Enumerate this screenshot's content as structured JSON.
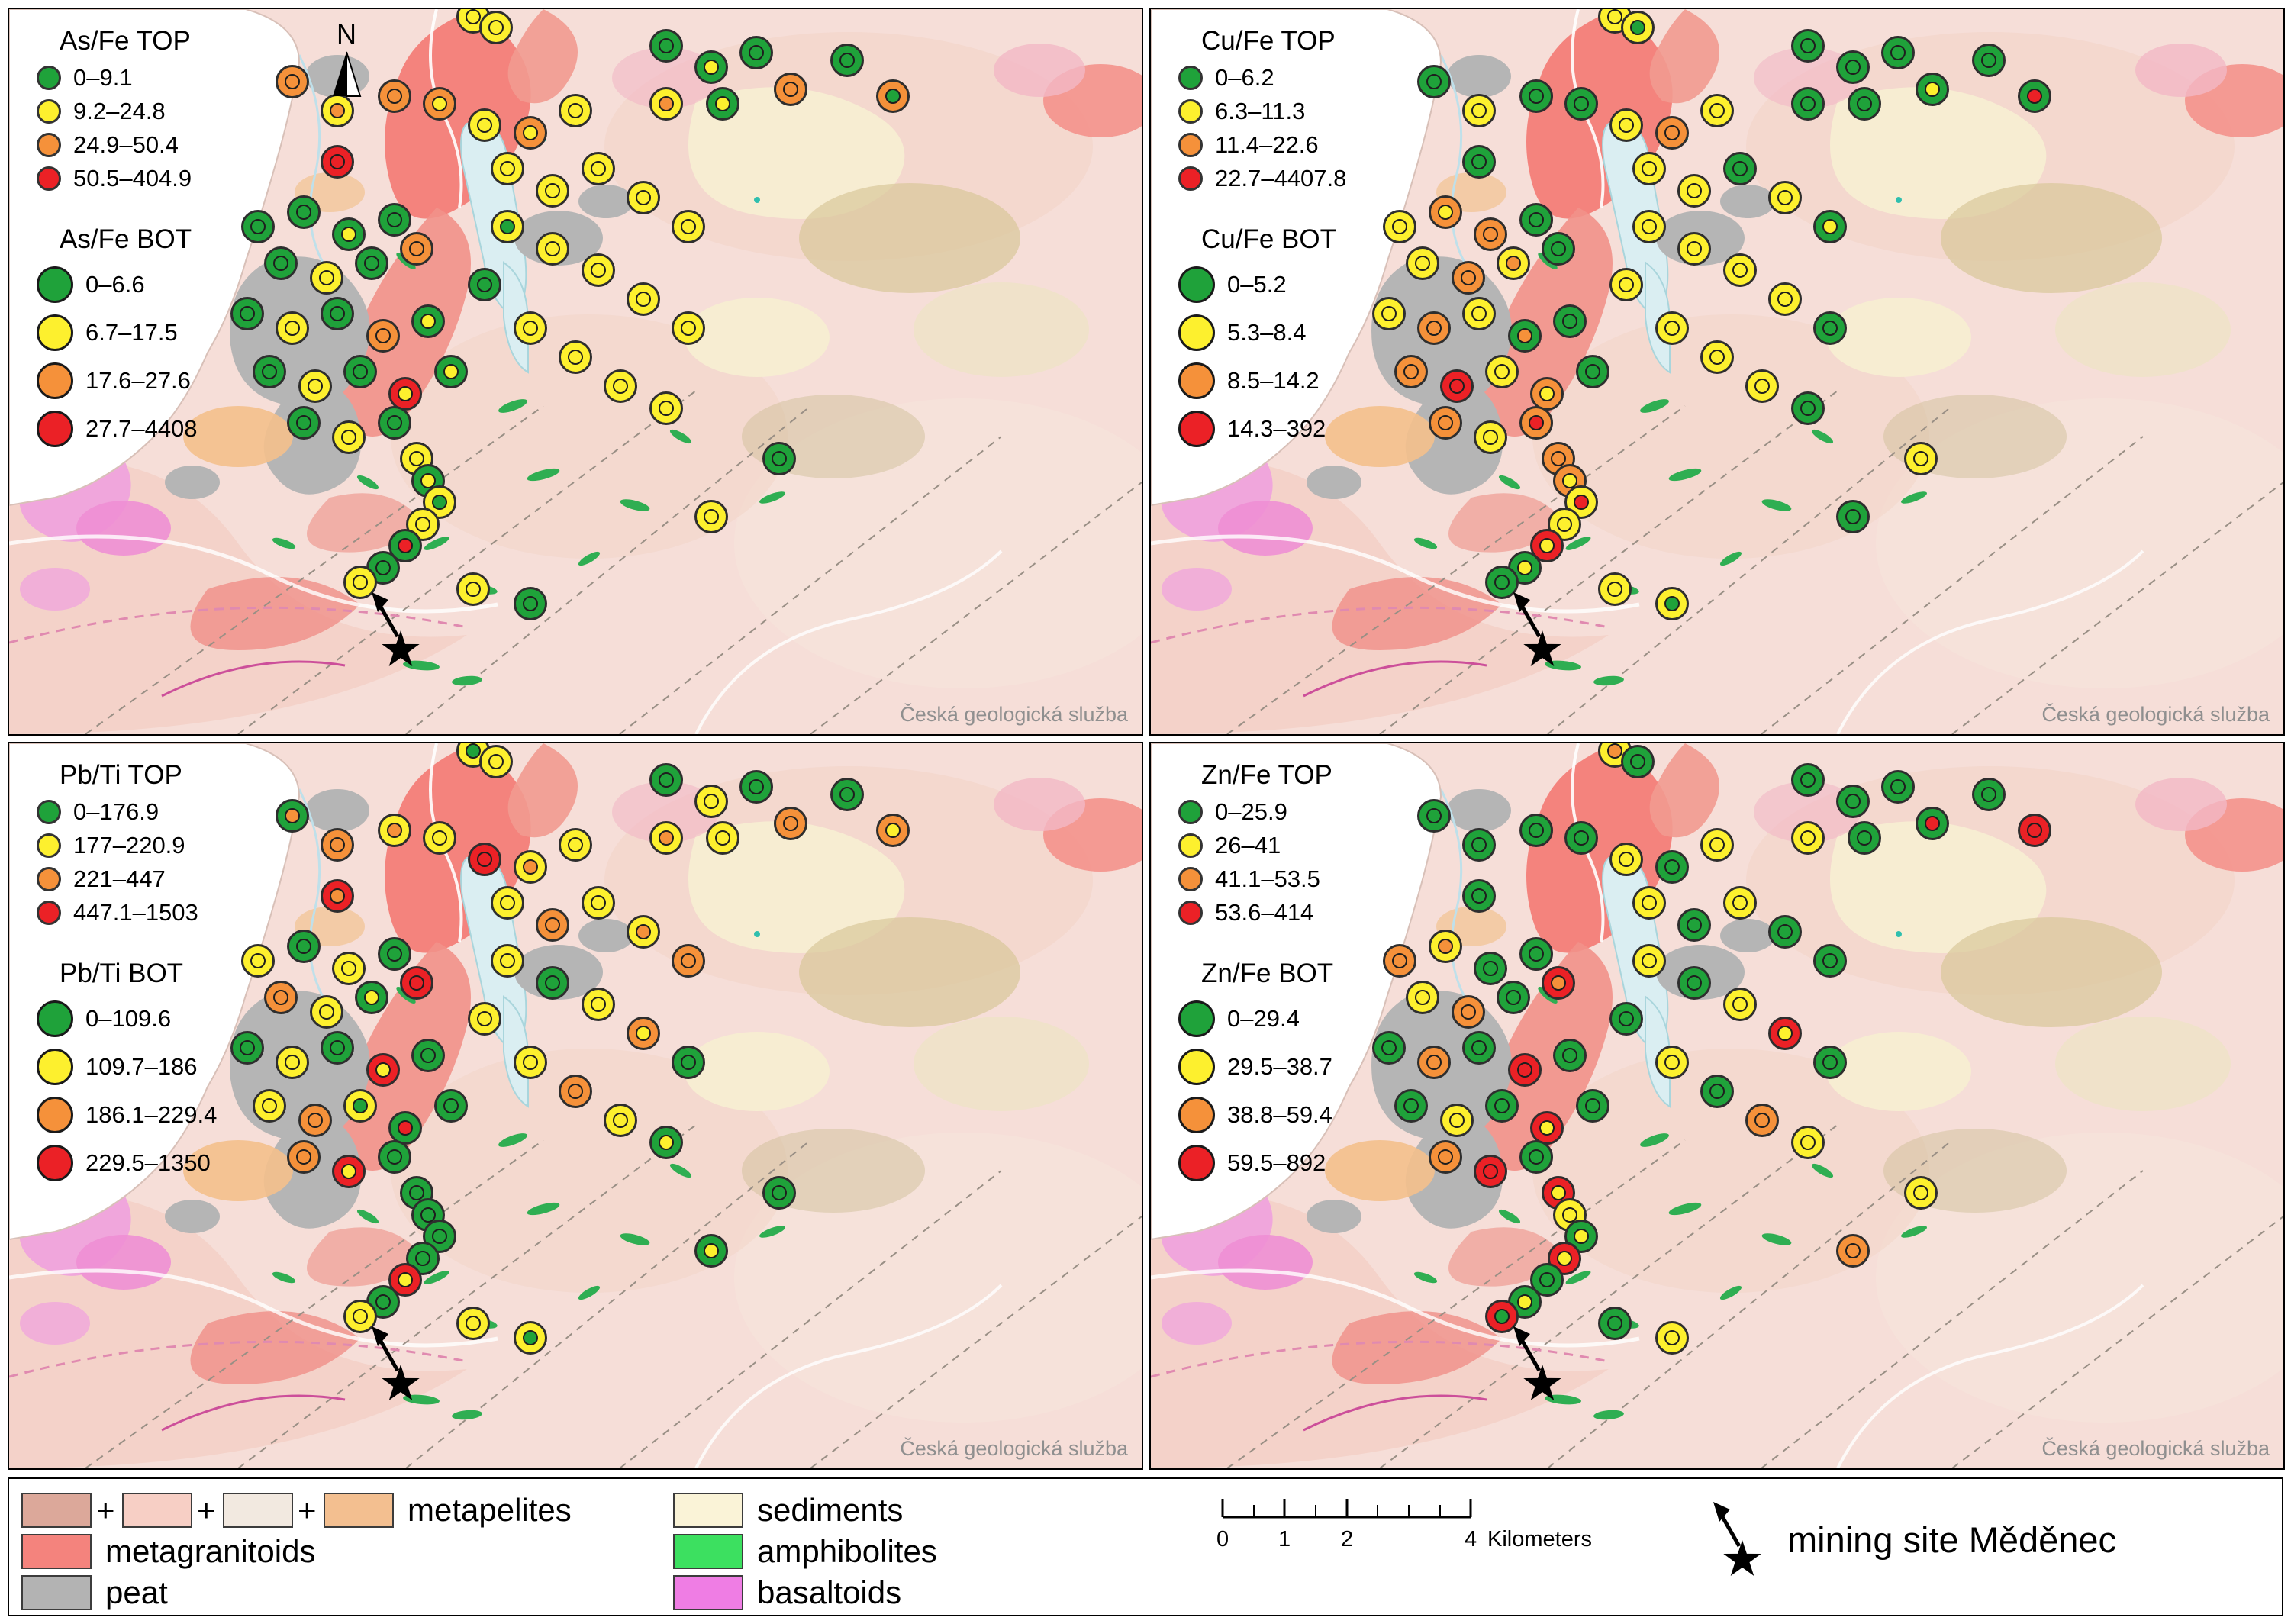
{
  "north_label": "N",
  "watermark": "Česká geologická služba",
  "plus_sign": "+",
  "marker_palette": {
    "g": "#1fa23a",
    "y": "#fdf02e",
    "o": "#f5913a",
    "r": "#eb2126"
  },
  "sites": [
    "41,1",
    "43,2.5",
    "58,5",
    "62,8",
    "66,6",
    "69,11",
    "63,13",
    "58,13",
    "74,7",
    "78,12",
    "25,10",
    "29,14",
    "34,12",
    "38,13",
    "42,16",
    "46,17",
    "50,14",
    "29,21",
    "22,30",
    "26,28",
    "30,31",
    "34,29",
    "24,35",
    "28,37",
    "32,35",
    "36,33",
    "21,42",
    "25,44",
    "29,42",
    "33,45",
    "37,43",
    "23,50",
    "27,52",
    "31,50",
    "35,53",
    "39,50",
    "26,57",
    "30,59",
    "34,57",
    "44,22",
    "48,25",
    "52,22",
    "56,26",
    "60,30",
    "44,30",
    "48,33",
    "52,36",
    "56,40",
    "60,44",
    "46,44",
    "50,48",
    "54,52",
    "58,55",
    "42,38",
    "36,62",
    "37,65",
    "38,68",
    "36.5,71",
    "35,74",
    "33,77",
    "31,79",
    "46,82",
    "41,80",
    "62,70",
    "68,62"
  ],
  "panels": [
    {
      "top": {
        "title": "As/Fe TOP",
        "classes": [
          {
            "c": "g",
            "label": "0–9.1"
          },
          {
            "c": "y",
            "label": "9.2–24.8"
          },
          {
            "c": "o",
            "label": "24.9–50.4"
          },
          {
            "c": "r",
            "label": "50.5–404.9"
          }
        ]
      },
      "bot": {
        "title": "As/Fe BOT",
        "classes": [
          {
            "c": "g",
            "label": "0–6.6"
          },
          {
            "c": "y",
            "label": "6.7–17.5"
          },
          {
            "c": "o",
            "label": "17.6–27.6"
          },
          {
            "c": "r",
            "label": "27.7–4408"
          }
        ]
      },
      "marker_colors": [
        "yy",
        "yy",
        "gg",
        "gy",
        "gg",
        "oo",
        "gy",
        "yo",
        "gg",
        "og",
        "oo",
        "yo",
        "oo",
        "oy",
        "yy",
        "oy",
        "yy",
        "rr",
        "gg",
        "gg",
        "gy",
        "gg",
        "gg",
        "yy",
        "gg",
        "oo",
        "gg",
        "yy",
        "gg",
        "oo",
        "gy",
        "gg",
        "yy",
        "gg",
        "ry",
        "gy",
        "gg",
        "yy",
        "gg",
        "yy",
        "yy",
        "yy",
        "yy",
        "yy",
        "yg",
        "yy",
        "yy",
        "yy",
        "yy",
        "yy",
        "yy",
        "yy",
        "yy",
        "gg",
        "yy",
        "gy",
        "yg",
        "yy",
        "gr",
        "gg",
        "yy",
        "gg",
        "yy",
        "yy",
        "gg"
      ]
    },
    {
      "top": {
        "title": "Cu/Fe TOP",
        "classes": [
          {
            "c": "g",
            "label": "0–6.2"
          },
          {
            "c": "y",
            "label": "6.3–11.3"
          },
          {
            "c": "o",
            "label": "11.4–22.6"
          },
          {
            "c": "r",
            "label": "22.7–4407.8"
          }
        ]
      },
      "bot": {
        "title": "Cu/Fe BOT",
        "classes": [
          {
            "c": "g",
            "label": "0–5.2"
          },
          {
            "c": "y",
            "label": "5.3–8.4"
          },
          {
            "c": "o",
            "label": "8.5–14.2"
          },
          {
            "c": "r",
            "label": "14.3–392"
          }
        ]
      },
      "marker_colors": [
        "yy",
        "yg",
        "gg",
        "gg",
        "gg",
        "gy",
        "gg",
        "gg",
        "gg",
        "gr",
        "gg",
        "yy",
        "gg",
        "gg",
        "yy",
        "oo",
        "yy",
        "gg",
        "yy",
        "oy",
        "oo",
        "gg",
        "yy",
        "oo",
        "yo",
        "gg",
        "yy",
        "oo",
        "yy",
        "go",
        "gg",
        "oo",
        "rr",
        "yy",
        "oy",
        "gg",
        "oo",
        "yy",
        "or",
        "yy",
        "yy",
        "gg",
        "yy",
        "gy",
        "yy",
        "yy",
        "yy",
        "yy",
        "gg",
        "yy",
        "yy",
        "yy",
        "gg",
        "yy",
        "oo",
        "oy",
        "yr",
        "yy",
        "ry",
        "gy",
        "gg",
        "yg",
        "yy",
        "gg",
        "yy"
      ]
    },
    {
      "top": {
        "title": "Pb/Ti TOP",
        "classes": [
          {
            "c": "g",
            "label": "0–176.9"
          },
          {
            "c": "y",
            "label": "177–220.9"
          },
          {
            "c": "o",
            "label": "221–447"
          },
          {
            "c": "r",
            "label": "447.1–1503"
          }
        ]
      },
      "bot": {
        "title": "Pb/Ti BOT",
        "classes": [
          {
            "c": "g",
            "label": "0–109.6"
          },
          {
            "c": "y",
            "label": "109.7–186"
          },
          {
            "c": "o",
            "label": "186.1–229.4"
          },
          {
            "c": "r",
            "label": "229.5–1350"
          }
        ]
      },
      "marker_colors": [
        "yg",
        "yy",
        "gg",
        "yy",
        "gg",
        "oo",
        "yy",
        "yo",
        "gg",
        "oy",
        "go",
        "oo",
        "yo",
        "yy",
        "rr",
        "yo",
        "yy",
        "ro",
        "yy",
        "gg",
        "yy",
        "gg",
        "oo",
        "yy",
        "gy",
        "rr",
        "gg",
        "yy",
        "gg",
        "ry",
        "gg",
        "yy",
        "oo",
        "yg",
        "gr",
        "gg",
        "oo",
        "ry",
        "gg",
        "yy",
        "oo",
        "yy",
        "yo",
        "oo",
        "yy",
        "gg",
        "yy",
        "oy",
        "gg",
        "yy",
        "oo",
        "yy",
        "gy",
        "yy",
        "gg",
        "gg",
        "gg",
        "gg",
        "ry",
        "gg",
        "yy",
        "yg",
        "yy",
        "gy",
        "gg"
      ]
    },
    {
      "top": {
        "title": "Zn/Fe TOP",
        "classes": [
          {
            "c": "g",
            "label": "0–25.9"
          },
          {
            "c": "y",
            "label": "26–41"
          },
          {
            "c": "o",
            "label": "41.1–53.5"
          },
          {
            "c": "r",
            "label": "53.6–414"
          }
        ]
      },
      "bot": {
        "title": "Zn/Fe BOT",
        "classes": [
          {
            "c": "g",
            "label": "0–29.4"
          },
          {
            "c": "y",
            "label": "29.5–38.7"
          },
          {
            "c": "o",
            "label": "38.8–59.4"
          },
          {
            "c": "r",
            "label": "59.5–892"
          }
        ]
      },
      "marker_colors": [
        "yo",
        "gg",
        "gg",
        "gg",
        "gg",
        "gr",
        "gg",
        "yy",
        "gg",
        "rr",
        "gg",
        "gg",
        "gg",
        "gg",
        "yy",
        "gg",
        "yy",
        "gg",
        "oo",
        "yo",
        "gg",
        "gg",
        "yy",
        "oo",
        "gg",
        "ro",
        "gg",
        "oo",
        "gg",
        "rr",
        "gg",
        "gg",
        "yy",
        "gg",
        "ry",
        "gg",
        "oo",
        "rr",
        "gg",
        "yy",
        "gg",
        "yy",
        "gg",
        "gg",
        "yy",
        "gg",
        "yy",
        "ry",
        "gg",
        "yy",
        "gg",
        "oo",
        "yy",
        "gg",
        "ry",
        "yy",
        "gy",
        "ry",
        "gg",
        "gy",
        "rg",
        "yy",
        "gg",
        "oo",
        "yy"
      ]
    }
  ],
  "geology_left": [
    {
      "type": "multi",
      "swatches": [
        "#dca89a",
        "#f7cfc5",
        "#f2e9e0",
        "#f3bf90"
      ],
      "label": "metapelites"
    },
    {
      "type": "single",
      "swatch": "#f4837d",
      "label": "metagranitoids"
    },
    {
      "type": "single",
      "swatch": "#b3b3b3",
      "label": "peat"
    }
  ],
  "geology_right": [
    {
      "swatch": "#faf3d7",
      "label": "sediments"
    },
    {
      "swatch": "#3ce060",
      "label": "amphibolites"
    },
    {
      "swatch": "#ef7de4",
      "label": "basaltoids"
    }
  ],
  "scalebar": {
    "tick_labels": [
      "0",
      "1",
      "2",
      "4"
    ],
    "unit": "Kilometers"
  },
  "mining_site": {
    "label": "mining site Měděnec"
  }
}
